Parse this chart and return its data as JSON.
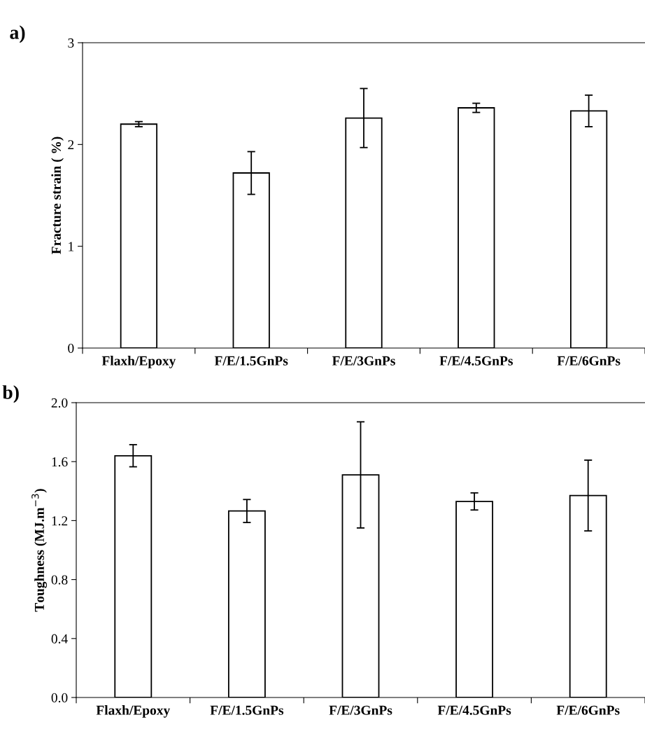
{
  "chart_data": [
    {
      "type": "bar",
      "title": "a)",
      "ylabel": "Fracture strain ( %)",
      "categories": [
        "Flaxh/Epoxy",
        "F/E/1.5GnPs",
        "F/E/3GnPs",
        "F/E/4.5GnPs",
        "F/E/6GnPs"
      ],
      "values": [
        2.2,
        1.72,
        2.26,
        2.36,
        2.33
      ],
      "errors": [
        0.025,
        0.21,
        0.29,
        0.045,
        0.155
      ],
      "color": "#ffffff",
      "ylim": [
        0,
        3
      ],
      "yticks": [
        0,
        1,
        2,
        3
      ],
      "grid": false
    },
    {
      "type": "bar",
      "title": "b)",
      "ylabel": "Toughness (MJ.m$^{−3}$)",
      "categories": [
        "Flaxh/Epoxy",
        "F/E/1.5GnPs",
        "F/E/3GnPs",
        "F/E/4.5GnPs",
        "F/E/6GnPs"
      ],
      "values": [
        1.64,
        1.265,
        1.51,
        1.33,
        1.37
      ],
      "errors": [
        0.075,
        0.078,
        0.36,
        0.058,
        0.24
      ],
      "color": "#ffffff",
      "ylim": [
        0,
        2.0
      ],
      "yticks": [
        {
          "value": 0,
          "label": "0.0"
        },
        {
          "value": 0.4,
          "label": "0.4"
        },
        {
          "value": 0.8,
          "label": "0.8"
        },
        {
          "value": 1.2,
          "label": "1.2"
        },
        {
          "value": 1.6,
          "label": "1.6"
        },
        {
          "value": 2.0,
          "label": "2.0"
        }
      ],
      "grid": false
    }
  ]
}
